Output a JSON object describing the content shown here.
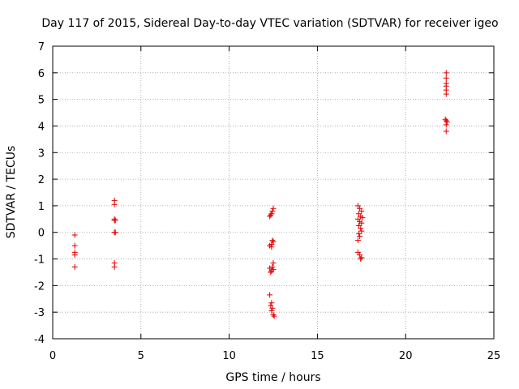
{
  "chart_data": {
    "type": "scatter",
    "title": "Day 117 of 2015, Sidereal Day-to-day VTEC variation (SDTVAR) for receiver igeo",
    "xlabel": "GPS time / hours",
    "ylabel": "SDTVAR / TECUs",
    "xlim": [
      0,
      25
    ],
    "ylim": [
      -4,
      7
    ],
    "x_ticks": [
      0,
      5,
      10,
      15,
      20,
      25
    ],
    "y_ticks": [
      -4,
      -3,
      -2,
      -1,
      0,
      1,
      2,
      3,
      4,
      5,
      6,
      7
    ],
    "grid": true,
    "marker": "+",
    "color": "#e00000",
    "series": [
      {
        "name": "SDTVAR",
        "points": [
          [
            1.25,
            -0.1
          ],
          [
            1.25,
            -0.5
          ],
          [
            1.25,
            -0.75
          ],
          [
            1.25,
            -0.85
          ],
          [
            1.25,
            -1.3
          ],
          [
            3.5,
            1.2
          ],
          [
            3.5,
            1.05
          ],
          [
            3.5,
            0.45
          ],
          [
            3.5,
            0.5
          ],
          [
            3.55,
            0.45
          ],
          [
            3.5,
            0.0
          ],
          [
            3.55,
            0.0
          ],
          [
            3.5,
            -1.15
          ],
          [
            3.5,
            -1.3
          ],
          [
            12.3,
            -2.35
          ],
          [
            12.4,
            -2.65
          ],
          [
            12.35,
            -2.75
          ],
          [
            12.45,
            -2.85
          ],
          [
            12.4,
            -2.95
          ],
          [
            12.5,
            -3.1
          ],
          [
            12.55,
            -3.15
          ],
          [
            12.3,
            0.6
          ],
          [
            12.4,
            0.7
          ],
          [
            12.45,
            0.8
          ],
          [
            12.5,
            0.9
          ],
          [
            12.35,
            0.65
          ],
          [
            12.3,
            -0.5
          ],
          [
            12.4,
            -0.45
          ],
          [
            12.5,
            -0.35
          ],
          [
            12.4,
            -0.55
          ],
          [
            12.45,
            -0.3
          ],
          [
            12.3,
            -1.35
          ],
          [
            12.4,
            -1.45
          ],
          [
            12.5,
            -1.4
          ],
          [
            12.35,
            -1.5
          ],
          [
            12.45,
            -1.3
          ],
          [
            12.5,
            -1.15
          ],
          [
            17.3,
            1.0
          ],
          [
            17.4,
            0.9
          ],
          [
            17.5,
            0.8
          ],
          [
            17.35,
            0.7
          ],
          [
            17.45,
            0.6
          ],
          [
            17.55,
            0.55
          ],
          [
            17.3,
            0.5
          ],
          [
            17.4,
            0.4
          ],
          [
            17.5,
            0.35
          ],
          [
            17.35,
            0.25
          ],
          [
            17.45,
            0.15
          ],
          [
            17.5,
            0.05
          ],
          [
            17.35,
            -0.05
          ],
          [
            17.4,
            -0.15
          ],
          [
            17.3,
            -0.3
          ],
          [
            17.3,
            -0.75
          ],
          [
            17.4,
            -0.85
          ],
          [
            17.5,
            -0.95
          ],
          [
            17.45,
            -1.0
          ],
          [
            22.3,
            6.0
          ],
          [
            22.3,
            5.8
          ],
          [
            22.3,
            5.6
          ],
          [
            22.3,
            5.5
          ],
          [
            22.3,
            5.35
          ],
          [
            22.3,
            5.2
          ],
          [
            22.25,
            4.25
          ],
          [
            22.3,
            4.2
          ],
          [
            22.35,
            4.15
          ],
          [
            22.3,
            4.05
          ],
          [
            22.3,
            3.8
          ]
        ]
      }
    ]
  }
}
